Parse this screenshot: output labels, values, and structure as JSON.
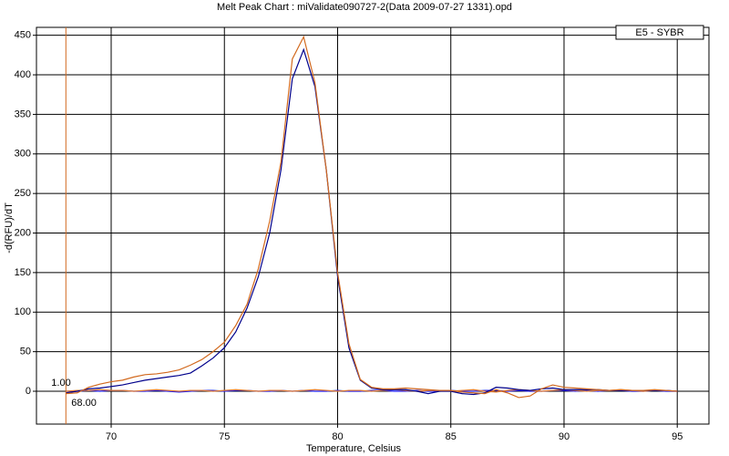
{
  "chart_data": {
    "type": "line",
    "title": "Melt Peak Chart : miValidate090727-2(Data 2009-07-27 1331).opd",
    "x_label": "Temperature, Celsius",
    "y_label": "-d(RFU)/dT",
    "legend": "E5 - SYBR",
    "x": [
      68,
      68.5,
      69,
      69.5,
      70,
      70.5,
      71,
      71.5,
      72,
      72.5,
      73,
      73.5,
      74,
      74.5,
      75,
      75.5,
      76,
      76.5,
      77,
      77.5,
      78,
      78.5,
      79,
      79.5,
      80,
      80.5,
      81,
      81.5,
      82,
      82.5,
      83,
      83.5,
      84,
      84.5,
      85,
      85.5,
      86,
      86.5,
      87,
      87.5,
      88,
      88.5,
      89,
      89.5,
      90,
      90.5,
      91,
      91.5,
      92,
      92.5,
      93,
      93.5,
      94,
      94.5,
      95
    ],
    "series": [
      {
        "color": "#d2691e",
        "values": [
          -3,
          -2,
          5,
          9,
          12,
          14,
          18,
          21,
          22,
          24,
          27,
          33,
          40,
          50,
          62,
          83,
          110,
          155,
          215,
          290,
          420,
          448,
          390,
          280,
          150,
          60,
          15,
          5,
          3,
          3,
          4,
          3,
          2,
          1,
          1,
          -1,
          -2,
          -3,
          2,
          -2,
          -8,
          -6,
          3,
          8,
          5,
          4,
          3,
          2,
          1,
          2,
          1,
          1,
          2,
          1,
          0
        ]
      },
      {
        "color": "#00008b",
        "values": [
          -2,
          0,
          3,
          4,
          6,
          8,
          11,
          14,
          16,
          18,
          20,
          23,
          32,
          42,
          55,
          75,
          105,
          145,
          200,
          280,
          395,
          432,
          385,
          280,
          145,
          55,
          14,
          4,
          2,
          2,
          2,
          0,
          -3,
          0,
          0,
          -3,
          -4,
          -2,
          5,
          4,
          2,
          1,
          3,
          4,
          2,
          2,
          2,
          2,
          1,
          1,
          1,
          1,
          1,
          1,
          0
        ]
      },
      {
        "color": "#e07a30",
        "values": [
          0,
          1,
          1,
          2,
          1,
          1,
          0,
          1,
          2,
          1,
          0,
          1,
          1,
          0,
          1,
          2,
          1,
          0,
          1,
          1,
          0,
          1,
          2,
          1,
          0,
          1,
          1,
          0,
          1,
          2,
          1,
          0,
          1,
          1,
          0,
          1,
          2,
          0,
          -1,
          1,
          2,
          1,
          0,
          1,
          2,
          1,
          0,
          1,
          1,
          2,
          1,
          0,
          1,
          1,
          0
        ]
      },
      {
        "color": "#1a1aff",
        "values": [
          0,
          0,
          1,
          0,
          1,
          1,
          0,
          0,
          1,
          0,
          -1,
          0,
          1,
          1,
          0,
          1,
          1,
          0,
          0,
          1,
          0,
          1,
          0,
          0,
          1,
          0,
          0,
          1,
          1,
          0,
          0,
          1,
          0,
          0,
          1,
          0,
          0,
          1,
          1,
          0,
          1,
          0,
          0,
          1,
          1,
          0,
          1,
          0,
          1,
          1,
          0,
          0,
          1,
          0,
          0
        ]
      }
    ],
    "cursor": {
      "x": {
        "value": 68,
        "label": "68.00"
      },
      "y": {
        "value": 1,
        "label": "1.00"
      },
      "color": "#d2691e"
    },
    "xlim": [
      66.7,
      96.4
    ],
    "ylim": [
      -41.5,
      460
    ],
    "xticks": [
      70,
      75,
      80,
      85,
      90,
      95
    ],
    "yticks": [
      0,
      50,
      100,
      150,
      200,
      250,
      300,
      350,
      400,
      450
    ],
    "grid": true
  }
}
